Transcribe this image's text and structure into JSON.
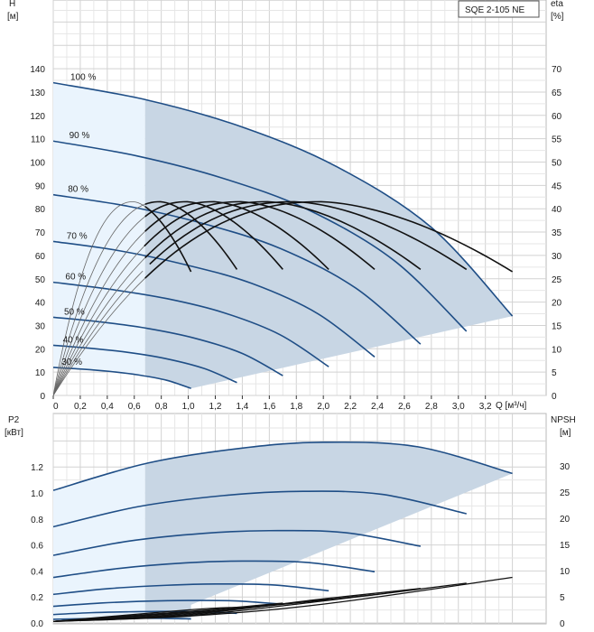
{
  "chart_data": [
    {
      "type": "line",
      "name": "head-efficiency",
      "model": "SQE 2-105 NE",
      "x_label": "Q [м³/ч]",
      "y_label_left": "H",
      "y_unit_left": "[м]",
      "y_label_right": "eta",
      "y_unit_right": "[%]",
      "x_ticks": [
        "0",
        "0,2",
        "0,4",
        "0,6",
        "0,8",
        "1,0",
        "1,2",
        "1,4",
        "1,6",
        "1,8",
        "2,0",
        "2,2",
        "2,4",
        "2,6",
        "2,8",
        "3,0",
        "3,2"
      ],
      "y_ticks_left": [
        "0",
        "10",
        "20",
        "30",
        "40",
        "50",
        "60",
        "70",
        "80",
        "90",
        "100",
        "110",
        "120",
        "130",
        "140"
      ],
      "y_ticks_right": [
        "0",
        "5",
        "10",
        "15",
        "20",
        "25",
        "30",
        "35",
        "40",
        "45",
        "50",
        "55",
        "60",
        "65",
        "70"
      ],
      "xlim": [
        0,
        3.65
      ],
      "ylim_left": [
        0,
        150
      ],
      "ylim_right": [
        0,
        75
      ],
      "min_flow": 0.68,
      "speed_labels": [
        "100 %",
        "90 %",
        "80 %",
        "70 %",
        "60 %",
        "50 %",
        "40 %",
        "30 %"
      ],
      "head_curves": [
        {
          "speed": 1.0,
          "points": [
            [
              0,
              134
            ],
            [
              0.7,
              126.5
            ],
            [
              1.4,
              115
            ],
            [
              2.1,
              98
            ],
            [
              2.8,
              72
            ],
            [
              3.4,
              34
            ]
          ]
        },
        {
          "speed": 0.9,
          "points": [
            [
              0,
              109
            ],
            [
              0.63,
              102.5
            ],
            [
              1.26,
              93
            ],
            [
              1.89,
              79.5
            ],
            [
              2.52,
              58
            ],
            [
              3.06,
              27.5
            ]
          ]
        },
        {
          "speed": 0.8,
          "points": [
            [
              0,
              86
            ],
            [
              0.56,
              81
            ],
            [
              1.12,
              73.5
            ],
            [
              1.68,
              63
            ],
            [
              2.24,
              46
            ],
            [
              2.72,
              22
            ]
          ]
        },
        {
          "speed": 0.7,
          "points": [
            [
              0,
              66
            ],
            [
              0.49,
              62
            ],
            [
              0.98,
              56
            ],
            [
              1.47,
              48
            ],
            [
              1.96,
              35
            ],
            [
              2.38,
              16.5
            ]
          ]
        },
        {
          "speed": 0.6,
          "points": [
            [
              0,
              48.5
            ],
            [
              0.42,
              45.5
            ],
            [
              0.84,
              41.5
            ],
            [
              1.26,
              35.5
            ],
            [
              1.68,
              26
            ],
            [
              2.04,
              12.3
            ]
          ]
        },
        {
          "speed": 0.5,
          "points": [
            [
              0,
              33.5
            ],
            [
              0.35,
              31.5
            ],
            [
              0.7,
              28.7
            ],
            [
              1.05,
              24.5
            ],
            [
              1.4,
              18
            ],
            [
              1.7,
              8.5
            ]
          ]
        },
        {
          "speed": 0.4,
          "points": [
            [
              0,
              21.5
            ],
            [
              0.28,
              20.2
            ],
            [
              0.56,
              18.4
            ],
            [
              0.84,
              15.7
            ],
            [
              1.12,
              11.5
            ],
            [
              1.36,
              5.5
            ]
          ]
        },
        {
          "speed": 0.3,
          "points": [
            [
              0,
              12
            ],
            [
              0.21,
              11.3
            ],
            [
              0.42,
              10.3
            ],
            [
              0.63,
              8.8
            ],
            [
              0.84,
              6.5
            ],
            [
              1.02,
              3
            ]
          ]
        }
      ],
      "efficiency_peak_eta": 41.5,
      "efficiency_end_eta": [
        26.5,
        27,
        27,
        27,
        27,
        27,
        27,
        26.5
      ],
      "efficiency_curve_end_q": [
        3.4,
        3.06,
        2.72,
        2.38,
        2.04,
        1.7,
        1.36,
        1.02
      ]
    },
    {
      "type": "line",
      "name": "power-npsh",
      "y_label_left": "P2",
      "y_unit_left": "[кВт]",
      "y_label_right": "NPSH",
      "y_unit_right": "[м]",
      "y_ticks_left": [
        "0.0",
        "0.2",
        "0.4",
        "0.6",
        "0.8",
        "1.0",
        "1.2"
      ],
      "y_ticks_right": [
        "0",
        "5",
        "10",
        "15",
        "20",
        "25",
        "30"
      ],
      "ylim_left": [
        0,
        1.4
      ],
      "ylim_right": [
        0,
        35
      ],
      "power_curves": [
        {
          "speed": 1.0,
          "points": [
            [
              0,
              1.02
            ],
            [
              0.7,
              1.23
            ],
            [
              1.4,
              1.345
            ],
            [
              2.0,
              1.39
            ],
            [
              2.7,
              1.355
            ],
            [
              3.4,
              1.15
            ]
          ]
        },
        {
          "speed": 0.9,
          "points": [
            [
              0,
              0.74
            ],
            [
              0.63,
              0.895
            ],
            [
              1.26,
              0.98
            ],
            [
              1.8,
              1.012
            ],
            [
              2.43,
              0.99
            ],
            [
              3.06,
              0.84
            ]
          ]
        },
        {
          "speed": 0.8,
          "points": [
            [
              0,
              0.52
            ],
            [
              0.56,
              0.63
            ],
            [
              1.12,
              0.69
            ],
            [
              1.6,
              0.71
            ],
            [
              2.16,
              0.695
            ],
            [
              2.72,
              0.59
            ]
          ]
        },
        {
          "speed": 0.7,
          "points": [
            [
              0,
              0.35
            ],
            [
              0.49,
              0.42
            ],
            [
              0.98,
              0.462
            ],
            [
              1.4,
              0.476
            ],
            [
              1.89,
              0.465
            ],
            [
              2.38,
              0.394
            ]
          ]
        },
        {
          "speed": 0.6,
          "points": [
            [
              0,
              0.22
            ],
            [
              0.42,
              0.265
            ],
            [
              0.84,
              0.29
            ],
            [
              1.2,
              0.3
            ],
            [
              1.62,
              0.293
            ],
            [
              2.04,
              0.248
            ]
          ]
        },
        {
          "speed": 0.5,
          "points": [
            [
              0,
              0.128
            ],
            [
              0.35,
              0.153
            ],
            [
              0.7,
              0.168
            ],
            [
              1.0,
              0.173
            ],
            [
              1.35,
              0.17
            ],
            [
              1.7,
              0.144
            ]
          ]
        },
        {
          "speed": 0.4,
          "points": [
            [
              0,
              0.065
            ],
            [
              0.28,
              0.079
            ],
            [
              0.56,
              0.086
            ],
            [
              0.8,
              0.089
            ],
            [
              1.08,
              0.087
            ],
            [
              1.36,
              0.074
            ]
          ]
        },
        {
          "speed": 0.3,
          "points": [
            [
              0,
              0.028
            ],
            [
              0.21,
              0.033
            ],
            [
              0.42,
              0.036
            ],
            [
              0.6,
              0.037
            ],
            [
              0.81,
              0.036
            ],
            [
              1.02,
              0.031
            ]
          ]
        }
      ],
      "npsh_curves": [
        {
          "speed": 1.0,
          "points": [
            [
              0,
              0.3
            ],
            [
              1.0,
              1.3
            ],
            [
              2.0,
              3.6
            ],
            [
              3.4,
              8.7
            ]
          ]
        },
        {
          "speed": 0.9,
          "points": [
            [
              0,
              0.3
            ],
            [
              1.0,
              1.4
            ],
            [
              2.0,
              4.2
            ],
            [
              3.06,
              7.6
            ]
          ]
        },
        {
          "speed": 0.8,
          "points": [
            [
              0,
              0.3
            ],
            [
              1.0,
              1.6
            ],
            [
              2.0,
              4.6
            ],
            [
              2.72,
              6.6
            ]
          ]
        },
        {
          "speed": 0.7,
          "points": [
            [
              0,
              0.3
            ],
            [
              1.0,
              1.8
            ],
            [
              2.38,
              5.4
            ]
          ]
        },
        {
          "speed": 0.6,
          "points": [
            [
              0,
              0.3
            ],
            [
              1.0,
              2.0
            ],
            [
              2.04,
              4.5
            ]
          ]
        },
        {
          "speed": 0.5,
          "points": [
            [
              0,
              0.3
            ],
            [
              1.0,
              2.2
            ],
            [
              1.7,
              3.8
            ]
          ]
        },
        {
          "speed": 0.4,
          "points": [
            [
              0,
              0.3
            ],
            [
              1.0,
              2.5
            ],
            [
              1.36,
              3.0
            ]
          ]
        },
        {
          "speed": 0.3,
          "points": [
            [
              0,
              0.3
            ],
            [
              1.02,
              2.2
            ]
          ]
        }
      ]
    }
  ]
}
